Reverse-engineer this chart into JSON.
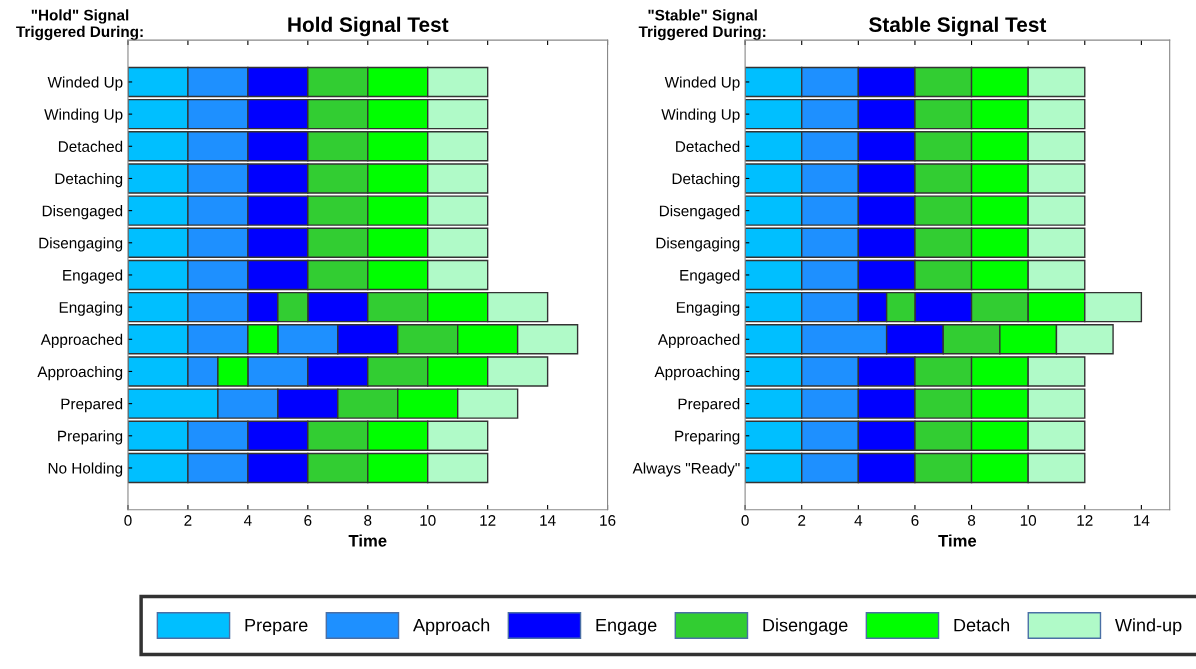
{
  "chart_data": [
    {
      "type": "bar",
      "orientation": "horizontal",
      "title": "Hold Signal Test",
      "xlabel": "Time",
      "ylabel": "\"Hold\" Signal\nTriggered During:",
      "legend": "bottom",
      "grid": false,
      "categories": [
        "Winded Up",
        "Winding Up",
        "Detached",
        "Detaching",
        "Disengaged",
        "Disengaging",
        "Engaged",
        "Engaging",
        "Approached",
        "Approaching",
        "Prepared",
        "Preparing",
        "No Holding"
      ],
      "xlim": [
        0,
        16
      ],
      "xticks": [
        0,
        2,
        4,
        6,
        8,
        10,
        12,
        14,
        16
      ],
      "series": [
        {
          "name": "Prepare",
          "color": "#00bfff",
          "base": [
            0,
            0,
            0,
            0,
            0,
            0,
            0,
            0,
            0,
            0,
            0,
            0,
            0
          ],
          "values": [
            2,
            2,
            2,
            2,
            2,
            2,
            2,
            2,
            2,
            2,
            3,
            2,
            2
          ]
        },
        {
          "name": "Approach",
          "color": "#1e90ff",
          "base": [
            2,
            2,
            2,
            2,
            2,
            2,
            2,
            2,
            2,
            2,
            3,
            2,
            2
          ],
          "values": [
            2,
            2,
            2,
            2,
            2,
            2,
            2,
            2,
            2,
            1,
            2,
            2,
            2
          ]
        },
        {
          "color": "#1e90ff",
          "base": [
            null,
            null,
            null,
            null,
            null,
            null,
            null,
            null,
            5,
            4,
            null,
            null,
            null
          ],
          "values": [
            null,
            null,
            null,
            null,
            null,
            null,
            null,
            null,
            2,
            2,
            null,
            null,
            null
          ]
        },
        {
          "name": "Engage",
          "color": "#0000ff",
          "base": [
            4,
            4,
            4,
            4,
            4,
            4,
            4,
            4,
            7,
            6,
            5,
            4,
            4
          ],
          "values": [
            2,
            2,
            2,
            2,
            2,
            2,
            2,
            1,
            2,
            2,
            2,
            2,
            2
          ]
        },
        {
          "color": "#0000ff",
          "base": [
            null,
            null,
            null,
            null,
            null,
            null,
            null,
            6,
            null,
            null,
            null,
            null,
            null
          ],
          "values": [
            null,
            null,
            null,
            null,
            null,
            null,
            null,
            2,
            null,
            null,
            null,
            null,
            null
          ]
        },
        {
          "name": "Disengage",
          "color": "#32cd32",
          "base": [
            6,
            6,
            6,
            6,
            6,
            6,
            6,
            5,
            9,
            8,
            7,
            6,
            6
          ],
          "values": [
            2,
            2,
            2,
            2,
            2,
            2,
            2,
            1,
            2,
            2,
            2,
            2,
            2
          ]
        },
        {
          "color": "#32cd32",
          "base": [
            null,
            null,
            null,
            null,
            null,
            null,
            null,
            8,
            null,
            null,
            null,
            null,
            null
          ],
          "values": [
            null,
            null,
            null,
            null,
            null,
            null,
            null,
            2,
            null,
            null,
            null,
            null,
            null
          ]
        },
        {
          "name": "Detach",
          "color": "#00ff00",
          "base": [
            8,
            8,
            8,
            8,
            8,
            8,
            8,
            10,
            11,
            10,
            9,
            8,
            8
          ],
          "values": [
            2,
            2,
            2,
            2,
            2,
            2,
            2,
            2,
            2,
            2,
            2,
            2,
            2
          ]
        },
        {
          "color": "#00ff00",
          "base": [
            null,
            null,
            null,
            null,
            null,
            null,
            null,
            null,
            4,
            3,
            null,
            null,
            null
          ],
          "values": [
            null,
            null,
            null,
            null,
            null,
            null,
            null,
            null,
            1,
            1,
            null,
            null,
            null
          ]
        },
        {
          "name": "Wind-up",
          "color": "#b0fac8",
          "base": [
            10,
            10,
            10,
            10,
            10,
            10,
            10,
            12,
            13,
            12,
            11,
            10,
            10
          ],
          "values": [
            2,
            2,
            2,
            2,
            2,
            2,
            2,
            2,
            2,
            2,
            2,
            2,
            2
          ]
        }
      ]
    },
    {
      "type": "bar",
      "orientation": "horizontal",
      "title": "Stable Signal Test",
      "xlabel": "Time",
      "ylabel": "\"Stable\" Signal\nTriggered During:",
      "grid": false,
      "categories": [
        "Winded Up",
        "Winding Up",
        "Detached",
        "Detaching",
        "Disengaged",
        "Disengaging",
        "Engaged",
        "Engaging",
        "Approached",
        "Approaching",
        "Prepared",
        "Preparing",
        "Always \"Ready\""
      ],
      "xlim": [
        0,
        15
      ],
      "xticks": [
        0,
        2,
        4,
        6,
        8,
        10,
        12,
        14
      ],
      "series": [
        {
          "color": "#00bfff",
          "base": [
            0,
            0,
            0,
            0,
            0,
            0,
            0,
            0,
            0,
            0,
            0,
            0,
            0
          ],
          "values": [
            2,
            2,
            2,
            2,
            2,
            2,
            2,
            2,
            2,
            2,
            2,
            2,
            2
          ]
        },
        {
          "color": "#1e90ff",
          "base": [
            2,
            2,
            2,
            2,
            2,
            2,
            2,
            2,
            2,
            2,
            2,
            2,
            2
          ],
          "values": [
            2,
            2,
            2,
            2,
            2,
            2,
            2,
            2,
            3,
            2,
            2,
            2,
            2
          ]
        },
        {
          "color": "#0000ff",
          "base": [
            4,
            4,
            4,
            4,
            4,
            4,
            4,
            4,
            5,
            4,
            4,
            4,
            4
          ],
          "values": [
            2,
            2,
            2,
            2,
            2,
            2,
            2,
            1,
            2,
            2,
            2,
            2,
            2
          ]
        },
        {
          "color": "#0000ff",
          "base": [
            null,
            null,
            null,
            null,
            null,
            null,
            null,
            6,
            null,
            null,
            null,
            null,
            null
          ],
          "values": [
            null,
            null,
            null,
            null,
            null,
            null,
            null,
            2,
            null,
            null,
            null,
            null,
            null
          ]
        },
        {
          "color": "#32cd32",
          "base": [
            6,
            6,
            6,
            6,
            6,
            6,
            6,
            5,
            7,
            6,
            6,
            6,
            6
          ],
          "values": [
            2,
            2,
            2,
            2,
            2,
            2,
            2,
            1,
            2,
            2,
            2,
            2,
            2
          ]
        },
        {
          "color": "#32cd32",
          "base": [
            null,
            null,
            null,
            null,
            null,
            null,
            null,
            8,
            null,
            null,
            null,
            null,
            null
          ],
          "values": [
            null,
            null,
            null,
            null,
            null,
            null,
            null,
            2,
            null,
            null,
            null,
            null,
            null
          ]
        },
        {
          "color": "#00ff00",
          "base": [
            8,
            8,
            8,
            8,
            8,
            8,
            8,
            10,
            9,
            8,
            8,
            8,
            8
          ],
          "values": [
            2,
            2,
            2,
            2,
            2,
            2,
            2,
            2,
            2,
            2,
            2,
            2,
            2
          ]
        },
        {
          "color": "#b0fac8",
          "base": [
            10,
            10,
            10,
            10,
            10,
            10,
            10,
            12,
            11,
            10,
            10,
            10,
            10
          ],
          "values": [
            2,
            2,
            2,
            2,
            2,
            2,
            2,
            2,
            2,
            2,
            2,
            2,
            2
          ]
        }
      ]
    }
  ]
}
